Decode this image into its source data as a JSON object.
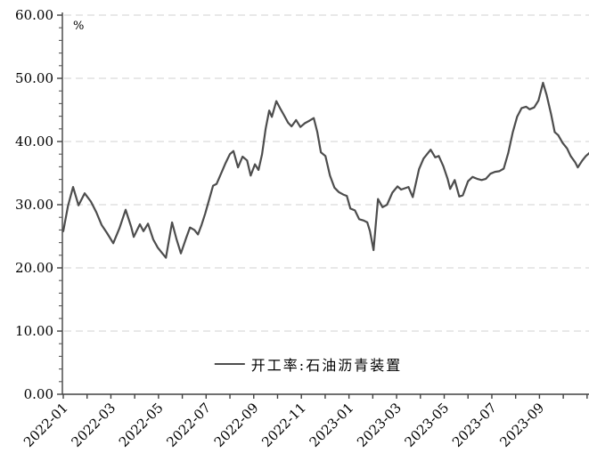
{
  "chart_data": {
    "type": "line",
    "title": "",
    "unit_label": "%",
    "legend": "开工率:石油沥青装置",
    "grid": "horizontal-dashed",
    "legend_position": "bottom-center-inside",
    "ylim": [
      0,
      60
    ],
    "y_major_step": 10,
    "y_minor_step": 2,
    "y_tick_labels": [
      "0.00",
      "10.00",
      "20.00",
      "30.00",
      "40.00",
      "50.00",
      "60.00"
    ],
    "x_tick_labels": [
      "2022-01",
      "2022-03",
      "2022-05",
      "2022-07",
      "2022-09",
      "2022-11",
      "2023-01",
      "2023-03",
      "2023-05",
      "2023-07",
      "2023-09"
    ],
    "x_label_every_n_months": 2,
    "x_months_total": 22.1,
    "series": [
      {
        "name": "开工率:石油沥青装置",
        "color": "#4d4d4d",
        "points": [
          [
            0.0,
            25.8
          ],
          [
            0.2,
            29.8
          ],
          [
            0.41,
            32.8
          ],
          [
            0.64,
            29.9
          ],
          [
            0.9,
            31.8
          ],
          [
            1.16,
            30.5
          ],
          [
            1.39,
            28.8
          ],
          [
            1.61,
            26.8
          ],
          [
            1.84,
            25.5
          ],
          [
            2.1,
            23.9
          ],
          [
            2.36,
            26.3
          ],
          [
            2.62,
            29.2
          ],
          [
            2.85,
            26.5
          ],
          [
            2.96,
            24.9
          ],
          [
            3.22,
            26.9
          ],
          [
            3.37,
            25.8
          ],
          [
            3.56,
            27.0
          ],
          [
            3.78,
            24.5
          ],
          [
            3.97,
            23.2
          ],
          [
            4.16,
            22.3
          ],
          [
            4.31,
            21.6
          ],
          [
            4.57,
            27.2
          ],
          [
            4.76,
            24.5
          ],
          [
            4.94,
            22.3
          ],
          [
            5.17,
            24.8
          ],
          [
            5.32,
            26.4
          ],
          [
            5.51,
            26.0
          ],
          [
            5.66,
            25.3
          ],
          [
            5.81,
            26.8
          ],
          [
            5.96,
            28.6
          ],
          [
            6.14,
            31.0
          ],
          [
            6.29,
            33.0
          ],
          [
            6.44,
            33.3
          ],
          [
            6.67,
            35.3
          ],
          [
            6.82,
            36.6
          ],
          [
            7.0,
            38.0
          ],
          [
            7.15,
            38.5
          ],
          [
            7.34,
            35.9
          ],
          [
            7.53,
            37.6
          ],
          [
            7.72,
            37.0
          ],
          [
            7.87,
            34.6
          ],
          [
            8.05,
            36.4
          ],
          [
            8.2,
            35.5
          ],
          [
            8.35,
            38.0
          ],
          [
            8.5,
            42.0
          ],
          [
            8.65,
            44.9
          ],
          [
            8.76,
            43.9
          ],
          [
            8.95,
            46.4
          ],
          [
            9.1,
            45.3
          ],
          [
            9.25,
            44.3
          ],
          [
            9.44,
            43.0
          ],
          [
            9.59,
            42.4
          ],
          [
            9.78,
            43.4
          ],
          [
            9.96,
            42.3
          ],
          [
            10.15,
            42.9
          ],
          [
            10.34,
            43.3
          ],
          [
            10.52,
            43.7
          ],
          [
            10.67,
            41.5
          ],
          [
            10.82,
            38.3
          ],
          [
            11.01,
            37.7
          ],
          [
            11.2,
            34.6
          ],
          [
            11.39,
            32.7
          ],
          [
            11.57,
            32.0
          ],
          [
            11.76,
            31.6
          ],
          [
            11.91,
            31.4
          ],
          [
            12.06,
            29.4
          ],
          [
            12.25,
            29.1
          ],
          [
            12.43,
            27.7
          ],
          [
            12.62,
            27.5
          ],
          [
            12.77,
            27.2
          ],
          [
            12.88,
            25.8
          ],
          [
            13.03,
            22.8
          ],
          [
            13.22,
            30.9
          ],
          [
            13.41,
            29.6
          ],
          [
            13.6,
            30.0
          ],
          [
            13.82,
            31.9
          ],
          [
            14.04,
            32.9
          ],
          [
            14.19,
            32.4
          ],
          [
            14.5,
            32.8
          ],
          [
            14.68,
            31.2
          ],
          [
            14.94,
            35.6
          ],
          [
            15.13,
            37.3
          ],
          [
            15.32,
            38.2
          ],
          [
            15.43,
            38.7
          ],
          [
            15.62,
            37.5
          ],
          [
            15.77,
            37.7
          ],
          [
            15.96,
            36.1
          ],
          [
            16.14,
            34.1
          ],
          [
            16.25,
            32.5
          ],
          [
            16.44,
            33.9
          ],
          [
            16.63,
            31.3
          ],
          [
            16.78,
            31.5
          ],
          [
            17.0,
            33.7
          ],
          [
            17.19,
            34.4
          ],
          [
            17.38,
            34.1
          ],
          [
            17.57,
            33.9
          ],
          [
            17.75,
            34.1
          ],
          [
            17.94,
            34.9
          ],
          [
            18.13,
            35.2
          ],
          [
            18.31,
            35.3
          ],
          [
            18.5,
            35.7
          ],
          [
            18.69,
            38.2
          ],
          [
            18.88,
            41.5
          ],
          [
            19.06,
            43.9
          ],
          [
            19.25,
            45.3
          ],
          [
            19.44,
            45.5
          ],
          [
            19.59,
            45.1
          ],
          [
            19.78,
            45.4
          ],
          [
            19.96,
            46.5
          ],
          [
            20.15,
            49.3
          ],
          [
            20.3,
            47.4
          ],
          [
            20.49,
            44.3
          ],
          [
            20.64,
            41.5
          ],
          [
            20.79,
            41.0
          ],
          [
            20.97,
            39.8
          ],
          [
            21.16,
            38.9
          ],
          [
            21.31,
            37.7
          ],
          [
            21.5,
            36.7
          ],
          [
            21.61,
            35.9
          ],
          [
            21.8,
            37.0
          ],
          [
            21.95,
            37.7
          ],
          [
            22.1,
            38.2
          ]
        ]
      }
    ],
    "colors": {
      "line": "#4d4d4d",
      "grid": "#d9d9d9",
      "axis": "#404040",
      "minor_tick": "#595959",
      "text": "#000000",
      "background": "#ffffff"
    }
  }
}
